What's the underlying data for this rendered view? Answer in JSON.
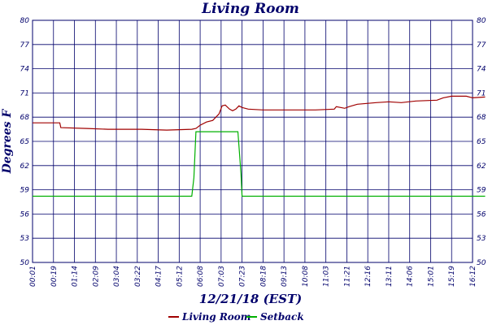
{
  "chart_data": {
    "type": "line",
    "title": "Living Room",
    "xlabel": "12/21/18 (EST)",
    "ylabel": "Degrees F",
    "x_tick_labels": [
      "00:01",
      "00:19",
      "01:14",
      "02:09",
      "03:04",
      "03:22",
      "04:17",
      "05:12",
      "06:08",
      "07:03",
      "07:23",
      "08:18",
      "09:13",
      "10:08",
      "11:03",
      "11:21",
      "12:16",
      "13:11",
      "14:06",
      "15:01",
      "15:19",
      "16:12"
    ],
    "y_ticks": [
      50,
      53,
      56,
      59,
      62,
      65,
      68,
      71,
      74,
      77,
      80
    ],
    "ylim": [
      50,
      80
    ],
    "grid": true,
    "legend_position": "bottom",
    "series": [
      {
        "name": "Living Room",
        "color": "#a00000",
        "points": [
          [
            0,
            67.3
          ],
          [
            1.3,
            67.3
          ],
          [
            1.35,
            66.7
          ],
          [
            2.6,
            66.6
          ],
          [
            3.6,
            66.5
          ],
          [
            5.2,
            66.5
          ],
          [
            6.4,
            66.4
          ],
          [
            7.6,
            66.5
          ],
          [
            7.8,
            66.6
          ],
          [
            8.0,
            67.0
          ],
          [
            8.3,
            67.4
          ],
          [
            8.6,
            67.6
          ],
          [
            8.9,
            68.4
          ],
          [
            9.05,
            69.4
          ],
          [
            9.2,
            69.5
          ],
          [
            9.4,
            69.0
          ],
          [
            9.55,
            68.8
          ],
          [
            9.7,
            69.0
          ],
          [
            9.85,
            69.4
          ],
          [
            10.0,
            69.2
          ],
          [
            10.3,
            69.0
          ],
          [
            11.0,
            68.9
          ],
          [
            12.0,
            68.9
          ],
          [
            13.5,
            68.9
          ],
          [
            14.4,
            69.0
          ],
          [
            14.5,
            69.3
          ],
          [
            14.9,
            69.1
          ],
          [
            15.1,
            69.3
          ],
          [
            15.5,
            69.6
          ],
          [
            16.4,
            69.8
          ],
          [
            17.0,
            69.9
          ],
          [
            17.6,
            69.8
          ],
          [
            18.3,
            70.0
          ],
          [
            19.3,
            70.1
          ],
          [
            19.6,
            70.4
          ],
          [
            20.0,
            70.6
          ],
          [
            20.7,
            70.6
          ],
          [
            21.0,
            70.4
          ],
          [
            21.6,
            70.5
          ]
        ]
      },
      {
        "name": "Setback",
        "color": "#00b000",
        "points": [
          [
            0,
            58.2
          ],
          [
            7.6,
            58.2
          ],
          [
            7.7,
            60.5
          ],
          [
            7.8,
            66.2
          ],
          [
            9.8,
            66.2
          ],
          [
            9.95,
            61.0
          ],
          [
            10.0,
            58.2
          ],
          [
            21.6,
            58.2
          ]
        ]
      }
    ]
  }
}
